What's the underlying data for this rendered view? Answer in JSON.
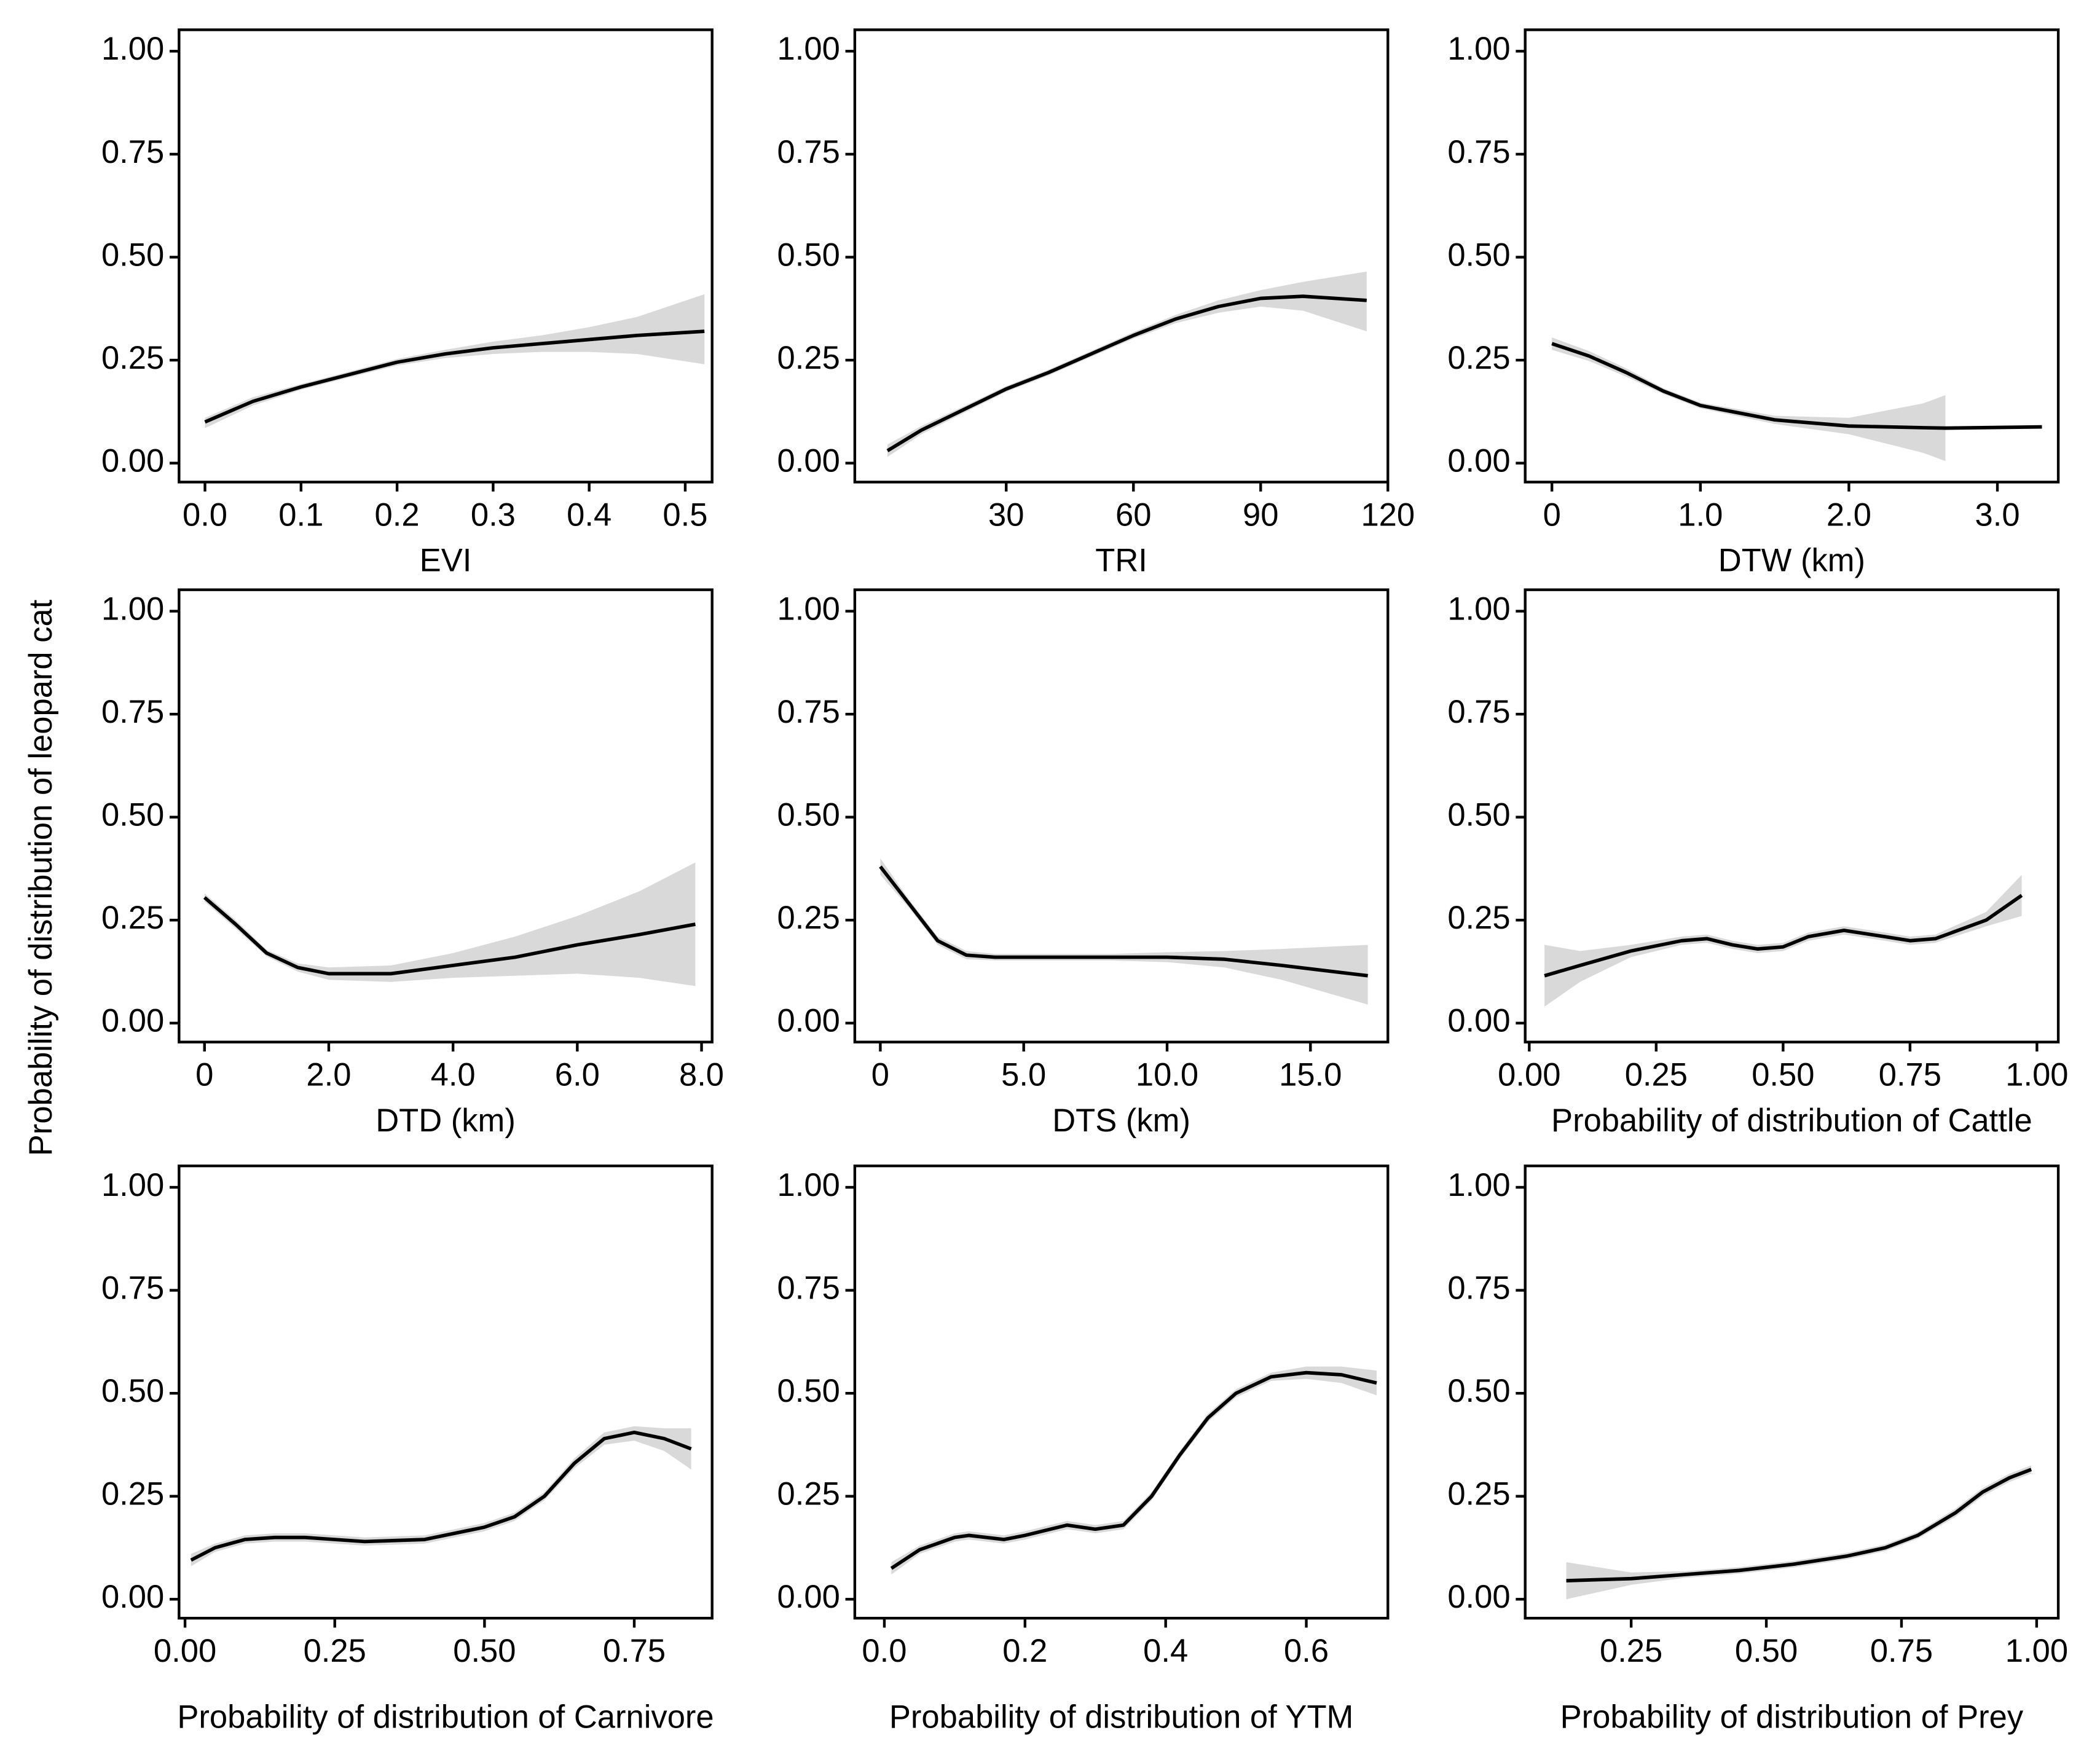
{
  "ylabel": "Probability of distribution of leopard cat",
  "chart_data": [
    {
      "type": "line",
      "xlabel": "EVI",
      "color": "#000000",
      "band_color": "#d9d9d9",
      "x": [
        0,
        0.05,
        0.1,
        0.15,
        0.2,
        0.25,
        0.3,
        0.35,
        0.4,
        0.45,
        0.52
      ],
      "values": [
        0.1,
        0.15,
        0.185,
        0.215,
        0.245,
        0.265,
        0.28,
        0.29,
        0.3,
        0.31,
        0.32
      ],
      "lower": [
        0.085,
        0.14,
        0.178,
        0.208,
        0.237,
        0.255,
        0.265,
        0.27,
        0.27,
        0.265,
        0.24
      ],
      "upper": [
        0.11,
        0.16,
        0.192,
        0.222,
        0.253,
        0.275,
        0.295,
        0.31,
        0.33,
        0.355,
        0.41
      ],
      "xlim": [
        -0.027,
        0.528
      ],
      "xticks": [
        {
          "value": 0,
          "label": "0.0"
        },
        0.1,
        0.2,
        0.3,
        0.4,
        0.5
      ],
      "ylim": [
        -0.046,
        1.052
      ],
      "yticks": [
        {
          "value": 0,
          "label": "0.00"
        },
        0.25,
        {
          "value": 0.5,
          "label": "0.50"
        },
        0.75,
        {
          "value": 1,
          "label": "1.00"
        }
      ]
    },
    {
      "type": "line",
      "xlabel": "TRI",
      "color": "#000000",
      "band_color": "#d9d9d9",
      "x": [
        2,
        10,
        20,
        30,
        40,
        50,
        60,
        70,
        80,
        90,
        100,
        115
      ],
      "values": [
        0.03,
        0.08,
        0.13,
        0.18,
        0.22,
        0.265,
        0.31,
        0.35,
        0.38,
        0.4,
        0.405,
        0.395
      ],
      "lower": [
        0.015,
        0.07,
        0.122,
        0.173,
        0.213,
        0.258,
        0.302,
        0.34,
        0.365,
        0.38,
        0.37,
        0.32
      ],
      "upper": [
        0.045,
        0.09,
        0.138,
        0.187,
        0.227,
        0.272,
        0.318,
        0.36,
        0.395,
        0.42,
        0.44,
        0.465
      ],
      "xlim": [
        -5.7,
        120
      ],
      "xticks": [
        30,
        60,
        90,
        120
      ],
      "ylim": [
        -0.046,
        1.052
      ],
      "yticks": [
        {
          "value": 0,
          "label": "0.00"
        },
        0.25,
        {
          "value": 0.5,
          "label": "0.50"
        },
        0.75,
        {
          "value": 1,
          "label": "1.00"
        }
      ]
    },
    {
      "type": "line",
      "xlabel": "DTW (km)",
      "color": "#000000",
      "band_color": "#d9d9d9",
      "x": [
        0,
        0.25,
        0.5,
        0.75,
        1.0,
        1.5,
        2.0,
        2.5,
        2.65,
        3.3
      ],
      "values": [
        0.29,
        0.26,
        0.22,
        0.175,
        0.14,
        0.105,
        0.09,
        0.086,
        0.085,
        0.088
      ],
      "lower": [
        0.275,
        0.248,
        0.21,
        0.168,
        0.133,
        0.095,
        0.07,
        0.025,
        0.005,
        null
      ],
      "upper": [
        0.305,
        0.272,
        0.23,
        0.182,
        0.147,
        0.115,
        0.11,
        0.145,
        0.165,
        null
      ],
      "xlim": [
        -0.18,
        3.41
      ],
      "xticks": [
        0,
        {
          "value": 1,
          "label": "1.0"
        },
        {
          "value": 2,
          "label": "2.0"
        },
        {
          "value": 3,
          "label": "3.0"
        }
      ],
      "ylim": [
        -0.046,
        1.052
      ],
      "yticks": [
        {
          "value": 0,
          "label": "0.00"
        },
        0.25,
        {
          "value": 0.5,
          "label": "0.50"
        },
        0.75,
        {
          "value": 1,
          "label": "1.00"
        }
      ]
    },
    {
      "type": "line",
      "xlabel": "DTD (km)",
      "color": "#000000",
      "band_color": "#d9d9d9",
      "x": [
        0,
        0.5,
        1,
        1.5,
        2,
        3,
        4,
        5,
        6,
        7,
        7.9
      ],
      "values": [
        0.305,
        0.24,
        0.17,
        0.135,
        0.12,
        0.12,
        0.14,
        0.16,
        0.19,
        0.215,
        0.24
      ],
      "lower": [
        0.295,
        0.23,
        0.162,
        0.125,
        0.105,
        0.1,
        0.11,
        0.115,
        0.12,
        0.11,
        0.09
      ],
      "upper": [
        0.315,
        0.25,
        0.178,
        0.145,
        0.135,
        0.14,
        0.17,
        0.21,
        0.26,
        0.32,
        0.39
      ],
      "xlim": [
        -0.41,
        8.17
      ],
      "xticks": [
        0,
        {
          "value": 2,
          "label": "2.0"
        },
        {
          "value": 4,
          "label": "4.0"
        },
        {
          "value": 6,
          "label": "6.0"
        },
        {
          "value": 8,
          "label": "8.0"
        }
      ],
      "ylim": [
        -0.046,
        1.052
      ],
      "yticks": [
        {
          "value": 0,
          "label": "0.00"
        },
        0.25,
        {
          "value": 0.5,
          "label": "0.50"
        },
        0.75,
        {
          "value": 1,
          "label": "1.00"
        }
      ]
    },
    {
      "type": "line",
      "xlabel": "DTS (km)",
      "color": "#000000",
      "band_color": "#d9d9d9",
      "x": [
        0,
        1,
        2,
        3,
        4,
        6,
        8,
        10,
        12,
        14,
        17
      ],
      "values": [
        0.38,
        0.29,
        0.2,
        0.165,
        0.16,
        0.16,
        0.16,
        0.16,
        0.155,
        0.14,
        0.115
      ],
      "lower": [
        0.36,
        0.28,
        0.19,
        0.155,
        0.152,
        0.152,
        0.152,
        0.148,
        0.135,
        0.105,
        0.045
      ],
      "upper": [
        0.4,
        0.3,
        0.21,
        0.175,
        0.168,
        0.168,
        0.168,
        0.172,
        0.175,
        0.18,
        0.19
      ],
      "xlim": [
        -0.89,
        17.7
      ],
      "xticks": [
        0,
        {
          "value": 5,
          "label": "5.0"
        },
        {
          "value": 10,
          "label": "10.0"
        },
        {
          "value": 15,
          "label": "15.0"
        }
      ],
      "ylim": [
        -0.046,
        1.052
      ],
      "yticks": [
        {
          "value": 0,
          "label": "0.00"
        },
        0.25,
        {
          "value": 0.5,
          "label": "0.50"
        },
        0.75,
        {
          "value": 1,
          "label": "1.00"
        }
      ]
    },
    {
      "type": "line",
      "xlabel": "Probability of distribution of Cattle",
      "color": "#000000",
      "band_color": "#d9d9d9",
      "x": [
        0.03,
        0.1,
        0.2,
        0.3,
        0.35,
        0.4,
        0.45,
        0.5,
        0.55,
        0.62,
        0.7,
        0.75,
        0.8,
        0.9,
        0.97
      ],
      "values": [
        0.115,
        0.14,
        0.175,
        0.2,
        0.205,
        0.19,
        0.18,
        0.185,
        0.21,
        0.225,
        0.21,
        0.2,
        0.205,
        0.25,
        0.31
      ],
      "lower": [
        0.04,
        0.1,
        0.16,
        0.19,
        0.195,
        0.18,
        0.17,
        0.175,
        0.2,
        0.215,
        0.2,
        0.19,
        0.195,
        0.235,
        0.26
      ],
      "upper": [
        0.19,
        0.175,
        0.19,
        0.21,
        0.215,
        0.2,
        0.19,
        0.195,
        0.22,
        0.235,
        0.22,
        0.21,
        0.215,
        0.27,
        0.36
      ],
      "xlim": [
        -0.008,
        1.042
      ],
      "xticks": [
        {
          "value": 0,
          "label": "0.00"
        },
        0.25,
        {
          "value": 0.5,
          "label": "0.50"
        },
        0.75,
        {
          "value": 1,
          "label": "1.00"
        }
      ],
      "ylim": [
        -0.046,
        1.052
      ],
      "yticks": [
        {
          "value": 0,
          "label": "0.00"
        },
        0.25,
        {
          "value": 0.5,
          "label": "0.50"
        },
        0.75,
        {
          "value": 1,
          "label": "1.00"
        }
      ]
    },
    {
      "type": "line",
      "xlabel": "Probability of distribution of Carnivore",
      "color": "#000000",
      "band_color": "#d9d9d9",
      "x": [
        0.01,
        0.05,
        0.1,
        0.15,
        0.2,
        0.3,
        0.4,
        0.5,
        0.55,
        0.6,
        0.65,
        0.7,
        0.75,
        0.8,
        0.845
      ],
      "values": [
        0.095,
        0.125,
        0.145,
        0.15,
        0.15,
        0.14,
        0.145,
        0.175,
        0.2,
        0.25,
        0.33,
        0.39,
        0.405,
        0.39,
        0.365
      ],
      "lower": [
        0.08,
        0.115,
        0.135,
        0.14,
        0.14,
        0.13,
        0.135,
        0.165,
        0.19,
        0.24,
        0.318,
        0.375,
        0.385,
        0.36,
        0.315
      ],
      "upper": [
        0.11,
        0.135,
        0.155,
        0.16,
        0.16,
        0.15,
        0.155,
        0.185,
        0.21,
        0.26,
        0.342,
        0.405,
        0.42,
        0.415,
        0.415
      ],
      "xlim": [
        -0.01,
        0.88
      ],
      "xticks": [
        {
          "value": 0,
          "label": "0.00"
        },
        0.25,
        {
          "value": 0.5,
          "label": "0.50"
        },
        0.75
      ],
      "ylim": [
        -0.046,
        1.052
      ],
      "yticks": [
        {
          "value": 0,
          "label": "0.00"
        },
        0.25,
        {
          "value": 0.5,
          "label": "0.50"
        },
        0.75,
        {
          "value": 1,
          "label": "1.00"
        }
      ]
    },
    {
      "type": "line",
      "xlabel": "Probability of distribution of YTM",
      "color": "#000000",
      "band_color": "#d9d9d9",
      "x": [
        0.01,
        0.05,
        0.1,
        0.12,
        0.17,
        0.2,
        0.26,
        0.3,
        0.34,
        0.38,
        0.42,
        0.46,
        0.5,
        0.55,
        0.6,
        0.65,
        0.7
      ],
      "values": [
        0.075,
        0.12,
        0.15,
        0.155,
        0.145,
        0.155,
        0.18,
        0.17,
        0.18,
        0.25,
        0.35,
        0.44,
        0.5,
        0.54,
        0.55,
        0.545,
        0.525
      ],
      "lower": [
        0.06,
        0.11,
        0.14,
        0.145,
        0.135,
        0.145,
        0.17,
        0.16,
        0.17,
        0.24,
        0.34,
        0.43,
        0.49,
        0.53,
        0.535,
        0.525,
        0.495
      ],
      "upper": [
        0.09,
        0.13,
        0.16,
        0.165,
        0.155,
        0.165,
        0.19,
        0.18,
        0.19,
        0.26,
        0.36,
        0.45,
        0.51,
        0.55,
        0.565,
        0.565,
        0.555
      ],
      "xlim": [
        -0.042,
        0.716
      ],
      "xticks": [
        {
          "value": 0,
          "label": "0.0"
        },
        0.2,
        0.4,
        0.6
      ],
      "ylim": [
        -0.046,
        1.052
      ],
      "yticks": [
        {
          "value": 0,
          "label": "0.00"
        },
        0.25,
        {
          "value": 0.5,
          "label": "0.50"
        },
        0.75,
        {
          "value": 1,
          "label": "1.00"
        }
      ]
    },
    {
      "type": "line",
      "xlabel": "Probability of distribution of Prey",
      "color": "#000000",
      "band_color": "#d9d9d9",
      "x": [
        0.13,
        0.25,
        0.35,
        0.45,
        0.55,
        0.65,
        0.72,
        0.78,
        0.85,
        0.9,
        0.95,
        0.99
      ],
      "values": [
        0.045,
        0.05,
        0.06,
        0.07,
        0.085,
        0.105,
        0.125,
        0.155,
        0.21,
        0.26,
        0.295,
        0.315
      ],
      "lower": [
        0.0,
        0.035,
        0.052,
        0.062,
        0.077,
        0.097,
        0.117,
        0.147,
        0.2,
        0.25,
        0.285,
        0.305
      ],
      "upper": [
        0.09,
        0.065,
        0.068,
        0.078,
        0.093,
        0.113,
        0.133,
        0.163,
        0.22,
        0.27,
        0.305,
        0.325
      ],
      "xlim": [
        0.054,
        1.04
      ],
      "xticks": [
        0.25,
        {
          "value": 0.5,
          "label": "0.50"
        },
        0.75,
        {
          "value": 1,
          "label": "1.00"
        }
      ],
      "ylim": [
        -0.046,
        1.052
      ],
      "yticks": [
        {
          "value": 0,
          "label": "0.00"
        },
        0.25,
        {
          "value": 0.5,
          "label": "0.50"
        },
        0.75,
        {
          "value": 1,
          "label": "1.00"
        }
      ]
    }
  ]
}
